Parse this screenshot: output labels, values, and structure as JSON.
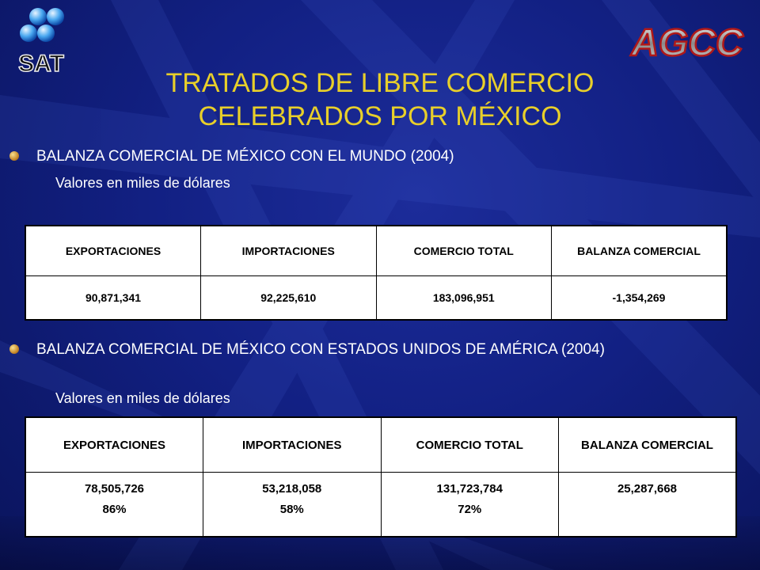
{
  "title": {
    "line1": "TRATADOS DE LIBRE COMERCIO",
    "line2": "CELEBRADOS POR MÉXICO"
  },
  "logos": {
    "left_text": "SAT",
    "right_text": "AGCC"
  },
  "section1": {
    "bullet": "BALANZA COMERCIAL DE MÉXICO CON EL MUNDO (2004)",
    "subtitle": "Valores en miles de dólares",
    "headers": [
      "EXPORTACIONES",
      "IMPORTACIONES",
      "COMERCIO TOTAL",
      "BALANZA COMERCIAL"
    ],
    "values": [
      "90,871,341",
      "92,225,610",
      "183,096,951",
      "-1,354,269"
    ]
  },
  "section2": {
    "bullet": "BALANZA COMERCIAL DE MÉXICO CON ESTADOS UNIDOS DE AMÉRICA (2004)",
    "subtitle": "Valores en miles de dólares",
    "headers": [
      "EXPORTACIONES",
      "IMPORTACIONES",
      "COMERCIO TOTAL",
      "BALANZA COMERCIAL"
    ],
    "values": [
      "78,505,726",
      "53,218,058",
      "131,723,784",
      "25,287,668"
    ],
    "percents": [
      "86%",
      "58%",
      "72%",
      ""
    ]
  },
  "colors": {
    "title": "#e8cf2a",
    "background": "#122083",
    "text": "#ffffff"
  }
}
